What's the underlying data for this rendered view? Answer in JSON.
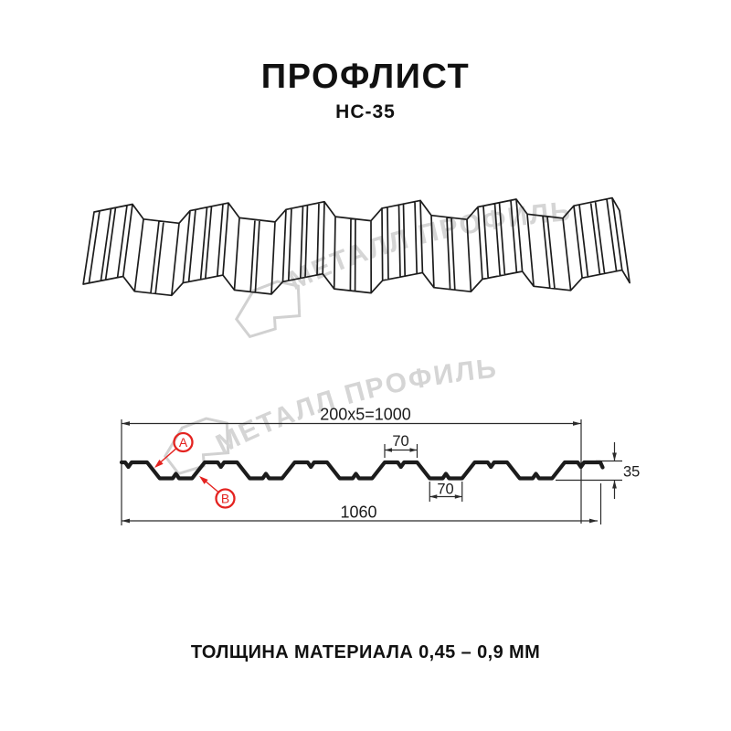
{
  "header": {
    "title": "ПРОФЛИСТ",
    "subtitle": "НС-35"
  },
  "watermark": {
    "text": "МЕТАЛЛ ПРОФИЛЬ"
  },
  "section_diagram": {
    "dim_pattern": "200x5=1000",
    "dim_top_flange": "70",
    "dim_bottom_flange": "70",
    "dim_height": "35",
    "dim_overall": "1060",
    "marker_a": "A",
    "marker_b": "B"
  },
  "footer": {
    "thickness_note": "ТОЛЩИНА МАТЕРИАЛА 0,45 – 0,9 ММ"
  },
  "colors": {
    "line": "#1c1c1c",
    "dimension": "#2b2b2b",
    "accent_red": "#e42320",
    "watermark": "#d3d3d3"
  }
}
